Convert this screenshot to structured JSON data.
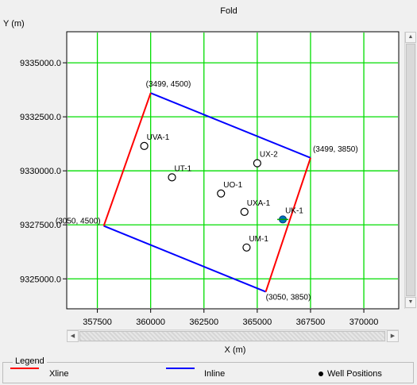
{
  "window": {
    "title": "Fold"
  },
  "axes": {
    "xlabel": "X (m)",
    "ylabel": "Y (m)",
    "x_ticks": [
      "357500",
      "360000",
      "362500",
      "365000",
      "367500",
      "370000"
    ],
    "y_ticks": [
      "9335000.0",
      "9332500.0",
      "9330000.0",
      "9327500.0",
      "9325000.0"
    ]
  },
  "chart_data": {
    "type": "scatter",
    "title": "Fold",
    "xlabel": "X (m)",
    "ylabel": "Y (m)",
    "xlim": [
      356100,
      371600
    ],
    "ylim": [
      9323650,
      9336400
    ],
    "grid": true,
    "x_gridlines": [
      357500,
      360000,
      362500,
      365000,
      367500,
      370000
    ],
    "y_gridlines": [
      9325000,
      9327500,
      9330000,
      9332500,
      9335000
    ],
    "survey_outline": {
      "corners": [
        {
          "label": "(3499, 4500)",
          "x": 360000,
          "y": 9333600
        },
        {
          "label": "(3499, 3850)",
          "x": 367500,
          "y": 9330600
        },
        {
          "label": "(3050, 3850)",
          "x": 365400,
          "y": 9324400
        },
        {
          "label": "(3050, 4500)",
          "x": 357800,
          "y": 9327450
        }
      ],
      "xline_edges": [
        [
          0,
          3
        ],
        [
          1,
          2
        ]
      ],
      "inline_edges": [
        [
          0,
          1
        ],
        [
          3,
          2
        ]
      ]
    },
    "wells": [
      {
        "name": "UVA-1",
        "x": 359700,
        "y": 9331150
      },
      {
        "name": "UT-1",
        "x": 361000,
        "y": 9329700
      },
      {
        "name": "UO-1",
        "x": 363300,
        "y": 9328950
      },
      {
        "name": "UX-2",
        "x": 365000,
        "y": 9330350
      },
      {
        "name": "UXA-1",
        "x": 364400,
        "y": 9328100
      },
      {
        "name": "UK-1",
        "x": 366200,
        "y": 9327750
      },
      {
        "name": "UM-1",
        "x": 364500,
        "y": 9326450
      }
    ],
    "highlighted_well": "UK-1"
  },
  "legend": {
    "title": "Legend",
    "items": [
      {
        "label": "Xline",
        "color": "#ff0000"
      },
      {
        "label": "Inline",
        "color": "#0000ff"
      },
      {
        "label": "Well Positions",
        "color": "#000000"
      }
    ]
  },
  "colors": {
    "grid": "#00dd00",
    "xline": "#ff0000",
    "inline": "#0000ff",
    "highlight": "#0070c0"
  }
}
